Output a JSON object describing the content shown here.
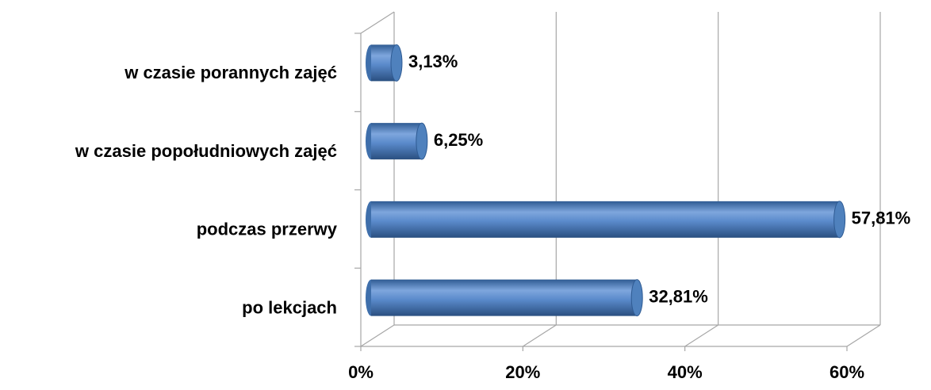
{
  "chart_data": {
    "type": "bar",
    "orientation": "horizontal",
    "categories": [
      "w czasie porannych zajęć",
      "w czasie popołudniowych zajęć",
      "podczas przerwy",
      "po lekcjach"
    ],
    "values": [
      3.13,
      6.25,
      57.81,
      32.81
    ],
    "value_labels": [
      "3,13%",
      "6,25%",
      "57,81%",
      "32,81%"
    ],
    "color": "#4f81bd",
    "xlim": [
      0,
      60
    ],
    "xticks": [
      {
        "value": 0,
        "label": "0%"
      },
      {
        "value": 20,
        "label": "20%"
      },
      {
        "value": 40,
        "label": "40%"
      },
      {
        "value": 60,
        "label": "60%"
      }
    ],
    "grid": true
  }
}
